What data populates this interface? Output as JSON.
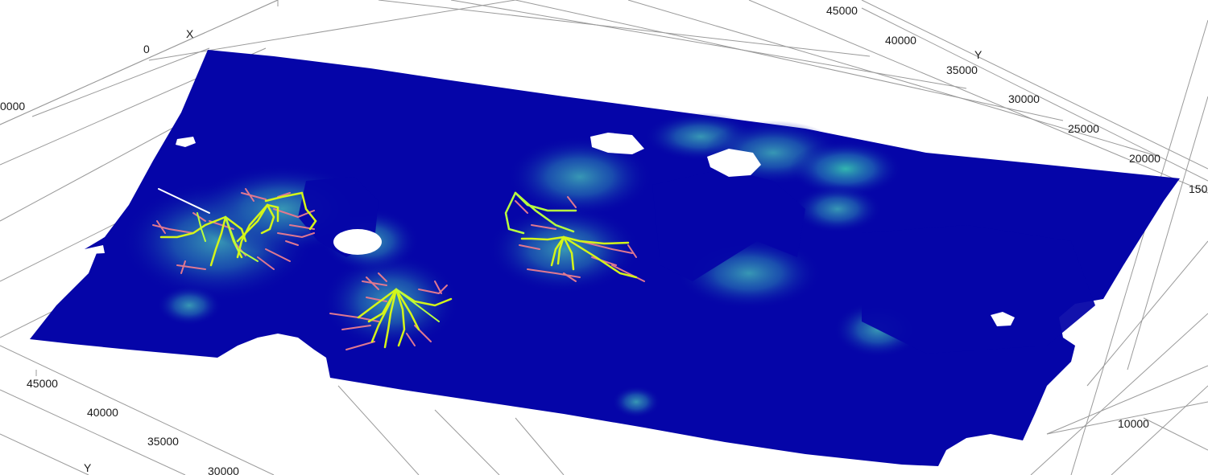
{
  "viewer": {
    "axes": {
      "x_name": "X",
      "y_name_top": "Y",
      "y_name_left": "Y",
      "x_ticks": [
        "0",
        "0000"
      ],
      "y_ticks_right": [
        "45000",
        "40000",
        "35000",
        "30000",
        "25000",
        "20000",
        "150"
      ],
      "y_ticks_left": [
        "45000",
        "40000",
        "35000",
        "30000"
      ],
      "bottom_tick": "10000"
    },
    "colors": {
      "surface": "#0505a8",
      "surface_light": "#1a3fb0",
      "teal_patch": "#2a7fa8",
      "grid": "#8f8f8f",
      "trajectory_main": "#d4f51a",
      "trajectory_alt": "#b8ff40",
      "trajectory_branch": "#e07890"
    }
  }
}
